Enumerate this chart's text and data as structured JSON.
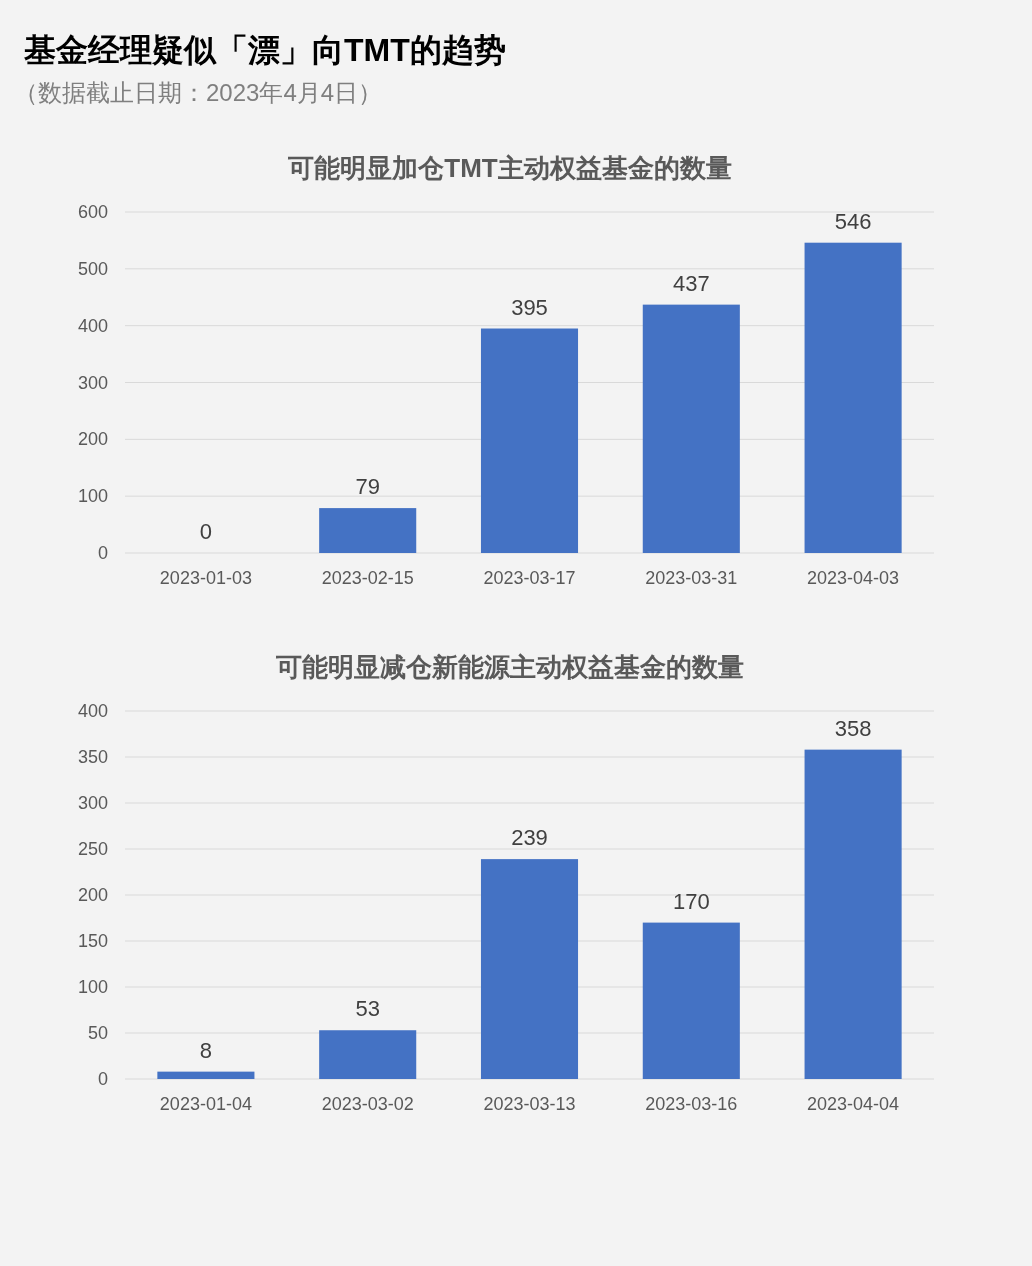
{
  "chart_data": [
    {
      "type": "other",
      "title": "基金经理疑似「漂」向TMT的趋势",
      "subtitle": "（数据截止日期：2023年4月4日）"
    },
    {
      "type": "bar",
      "title": "可能明显加仓TMT主动权益基金的数量",
      "categories": [
        "2023-01-03",
        "2023-02-15",
        "2023-03-17",
        "2023-03-31",
        "2023-04-03"
      ],
      "values": [
        0,
        79,
        395,
        437,
        546
      ],
      "color": "#4472c4",
      "ylim": [
        0,
        600
      ],
      "yticks": [
        0,
        100,
        200,
        300,
        400,
        500,
        600
      ],
      "grid": "y",
      "data_labels": true
    },
    {
      "type": "bar",
      "title": "可能明显减仓新能源主动权益基金的数量",
      "categories": [
        "2023-01-04",
        "2023-03-02",
        "2023-03-13",
        "2023-03-16",
        "2023-04-04"
      ],
      "values": [
        8,
        53,
        239,
        170,
        358
      ],
      "color": "#4472c4",
      "ylim": [
        0,
        400
      ],
      "yticks": [
        0,
        50,
        100,
        150,
        200,
        250,
        300,
        350,
        400
      ],
      "grid": "y",
      "data_labels": true
    }
  ]
}
